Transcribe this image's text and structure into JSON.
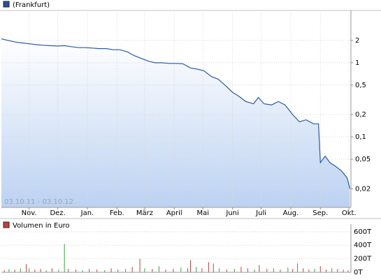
{
  "chart_data": [
    {
      "type": "line",
      "legend": "(Frankfurt)",
      "period": "03.10.11 - 03.10.12",
      "log_scale": true,
      "grid": true,
      "color": "#2a5aa8",
      "xlim": [
        0,
        366
      ],
      "xticks": [
        {
          "value": 29,
          "label": "Nov."
        },
        {
          "value": 59,
          "label": "Dez."
        },
        {
          "value": 90,
          "label": "Jan."
        },
        {
          "value": 121,
          "label": "Feb."
        },
        {
          "value": 150,
          "label": "März"
        },
        {
          "value": 181,
          "label": "April"
        },
        {
          "value": 211,
          "label": "Mai"
        },
        {
          "value": 242,
          "label": "Juni"
        },
        {
          "value": 272,
          "label": "Juli"
        },
        {
          "value": 303,
          "label": "Aug."
        },
        {
          "value": 334,
          "label": "Sep."
        },
        {
          "value": 364,
          "label": "Okt."
        }
      ],
      "ylim": [
        0.0112,
        4.75
      ],
      "yticks": [
        2,
        1,
        {
          "value": 0.5,
          "label": "0,5"
        },
        {
          "value": 0.2,
          "label": "0,2"
        },
        {
          "value": 0.1,
          "label": "0,1"
        },
        {
          "value": 0.05,
          "label": "0,05"
        },
        {
          "value": 0.02,
          "label": "0,02"
        }
      ],
      "x": [
        0,
        7,
        15,
        22,
        29,
        37,
        44,
        51,
        59,
        66,
        73,
        81,
        88,
        95,
        102,
        110,
        117,
        124,
        132,
        139,
        146,
        154,
        161,
        168,
        176,
        183,
        190,
        198,
        205,
        212,
        220,
        227,
        234,
        242,
        249,
        256,
        264,
        269,
        275,
        283,
        290,
        297,
        305,
        312,
        319,
        327,
        332,
        334,
        339,
        344,
        350,
        356,
        362,
        365
      ],
      "values": [
        2.1,
        2.0,
        1.9,
        1.85,
        1.8,
        1.75,
        1.72,
        1.7,
        1.68,
        1.7,
        1.65,
        1.6,
        1.6,
        1.58,
        1.55,
        1.55,
        1.5,
        1.5,
        1.4,
        1.25,
        1.15,
        1.05,
        1.0,
        1.0,
        0.98,
        0.98,
        0.97,
        0.85,
        0.82,
        0.78,
        0.65,
        0.6,
        0.5,
        0.4,
        0.35,
        0.3,
        0.28,
        0.34,
        0.28,
        0.27,
        0.3,
        0.27,
        0.2,
        0.16,
        0.17,
        0.15,
        0.15,
        0.045,
        0.055,
        0.045,
        0.04,
        0.035,
        0.028,
        0.02
      ]
    },
    {
      "type": "bar",
      "legend": "Volumen in Euro",
      "color": "#c04040",
      "xlim": [
        0,
        366
      ],
      "ylim": [
        0,
        650000
      ],
      "yticks": [
        {
          "value": 600000,
          "label": "600T"
        },
        {
          "value": 400000,
          "label": "400T"
        },
        {
          "value": 200000,
          "label": "200T"
        },
        {
          "value": 0,
          "label": "0T"
        }
      ],
      "x": [
        3,
        8,
        14,
        20,
        26,
        29,
        35,
        41,
        47,
        53,
        60,
        66,
        70,
        78,
        85,
        92,
        100,
        108,
        115,
        122,
        130,
        137,
        145,
        150,
        158,
        165,
        172,
        180,
        188,
        195,
        198,
        204,
        210,
        217,
        222,
        228,
        236,
        244,
        251,
        258,
        265,
        270,
        278,
        285,
        292,
        300,
        305,
        310,
        316,
        322,
        328,
        334,
        340,
        346,
        352,
        358,
        363
      ],
      "values": [
        30000,
        50000,
        40000,
        60000,
        120000,
        60000,
        40000,
        50000,
        30000,
        60000,
        40000,
        420000,
        50000,
        40000,
        30000,
        50000,
        40000,
        30000,
        60000,
        40000,
        50000,
        80000,
        200000,
        60000,
        50000,
        90000,
        40000,
        50000,
        70000,
        60000,
        180000,
        80000,
        60000,
        150000,
        130000,
        60000,
        40000,
        50000,
        80000,
        60000,
        40000,
        110000,
        50000,
        60000,
        40000,
        70000,
        50000,
        130000,
        60000,
        40000,
        50000,
        90000,
        40000,
        60000,
        50000,
        40000,
        30000
      ],
      "colors": [
        "#c04040",
        "#40a040",
        "#c04040",
        "#40a040",
        "#c04040",
        "#40a040",
        "#c04040",
        "#c04040",
        "#40a040",
        "#c04040",
        "#40a040",
        "#40a040",
        "#c04040",
        "#c04040",
        "#40a040",
        "#c04040",
        "#c04040",
        "#40a040",
        "#c04040",
        "#c04040",
        "#40a040",
        "#c04040",
        "#c04040",
        "#40a040",
        "#c04040",
        "#40a040",
        "#c04040",
        "#c04040",
        "#40a040",
        "#c04040",
        "#c04040",
        "#40a040",
        "#c04040",
        "#c04040",
        "#c04040",
        "#40a040",
        "#c04040",
        "#40a040",
        "#c04040",
        "#c04040",
        "#40a040",
        "#c04040",
        "#c04040",
        "#40a040",
        "#c04040",
        "#40a040",
        "#c04040",
        "#40a040",
        "#c04040",
        "#c04040",
        "#40a040",
        "#c04040",
        "#c04040",
        "#40a040",
        "#c04040",
        "#c04040",
        "#c04040"
      ]
    }
  ]
}
